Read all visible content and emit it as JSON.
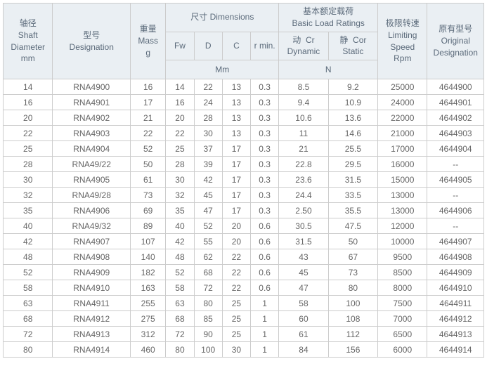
{
  "headers": {
    "shaft": {
      "cn": "轴径",
      "en1": "Shaft",
      "en2": "Diameter",
      "unit": "mm"
    },
    "designation": {
      "cn": "型号",
      "en": "Designation"
    },
    "mass": {
      "cn": "重量",
      "en": "Mass",
      "unit": "g"
    },
    "dimensions": {
      "cn": "尺寸",
      "en": "Dimensions",
      "fw": "Fw",
      "d": "D",
      "c": "C",
      "rmin": "r min.",
      "unit": "Mm"
    },
    "load": {
      "cn": "基本额定载荷",
      "en": "Basic Load Ratings",
      "dyn_cn": "动",
      "dyn": "Cr",
      "dyn_en": "Dynamic",
      "stat_cn": "静",
      "stat": "Cor",
      "stat_en": "Static",
      "unit": "N"
    },
    "speed": {
      "cn": "极限转速",
      "en1": "Limiting",
      "en2": "Speed",
      "unit": "Rpm"
    },
    "original": {
      "cn": "原有型号",
      "en1": "Original",
      "en2": "Designation"
    }
  },
  "rows": [
    [
      "14",
      "RNA4900",
      "16",
      "14",
      "22",
      "13",
      "0.3",
      "8.5",
      "9.2",
      "25000",
      "4644900"
    ],
    [
      "16",
      "RNA4901",
      "17",
      "16",
      "24",
      "13",
      "0.3",
      "9.4",
      "10.9",
      "24000",
      "4644901"
    ],
    [
      "20",
      "RNA4902",
      "21",
      "20",
      "28",
      "13",
      "0.3",
      "10.6",
      "13.6",
      "22000",
      "4644902"
    ],
    [
      "22",
      "RNA4903",
      "22",
      "22",
      "30",
      "13",
      "0.3",
      "11",
      "14.6",
      "21000",
      "4644903"
    ],
    [
      "25",
      "RNA4904",
      "52",
      "25",
      "37",
      "17",
      "0.3",
      "21",
      "25.5",
      "17000",
      "4644904"
    ],
    [
      "28",
      "RNA49/22",
      "50",
      "28",
      "39",
      "17",
      "0.3",
      "22.8",
      "29.5",
      "16000",
      "--"
    ],
    [
      "30",
      "RNA4905",
      "61",
      "30",
      "42",
      "17",
      "0.3",
      "23.6",
      "31.5",
      "15000",
      "4644905"
    ],
    [
      "32",
      "RNA49/28",
      "73",
      "32",
      "45",
      "17",
      "0.3",
      "24.4",
      "33.5",
      "13000",
      "--"
    ],
    [
      "35",
      "RNA4906",
      "69",
      "35",
      "47",
      "17",
      "0.3",
      "2.50",
      "35.5",
      "13000",
      "4644906"
    ],
    [
      "40",
      "RNA49/32",
      "89",
      "40",
      "52",
      "20",
      "0.6",
      "30.5",
      "47.5",
      "12000",
      "--"
    ],
    [
      "42",
      "RNA4907",
      "107",
      "42",
      "55",
      "20",
      "0.6",
      "31.5",
      "50",
      "10000",
      "4644907"
    ],
    [
      "48",
      "RNA4908",
      "140",
      "48",
      "62",
      "22",
      "0.6",
      "43",
      "67",
      "9500",
      "4644908"
    ],
    [
      "52",
      "RNA4909",
      "182",
      "52",
      "68",
      "22",
      "0.6",
      "45",
      "73",
      "8500",
      "4644909"
    ],
    [
      "58",
      "RNA4910",
      "163",
      "58",
      "72",
      "22",
      "0.6",
      "47",
      "80",
      "8000",
      "4644910"
    ],
    [
      "63",
      "RNA4911",
      "255",
      "63",
      "80",
      "25",
      "1",
      "58",
      "100",
      "7500",
      "4644911"
    ],
    [
      "68",
      "RNA4912",
      "275",
      "68",
      "85",
      "25",
      "1",
      "60",
      "108",
      "7000",
      "4644912"
    ],
    [
      "72",
      "RNA4913",
      "312",
      "72",
      "90",
      "25",
      "1",
      "61",
      "112",
      "6500",
      "4644913"
    ],
    [
      "80",
      "RNA4914",
      "460",
      "80",
      "100",
      "30",
      "1",
      "84",
      "156",
      "6000",
      "4644914"
    ]
  ],
  "col_widths": [
    "70",
    "110",
    "50",
    "40",
    "40",
    "40",
    "40",
    "70",
    "70",
    "70",
    "80"
  ]
}
